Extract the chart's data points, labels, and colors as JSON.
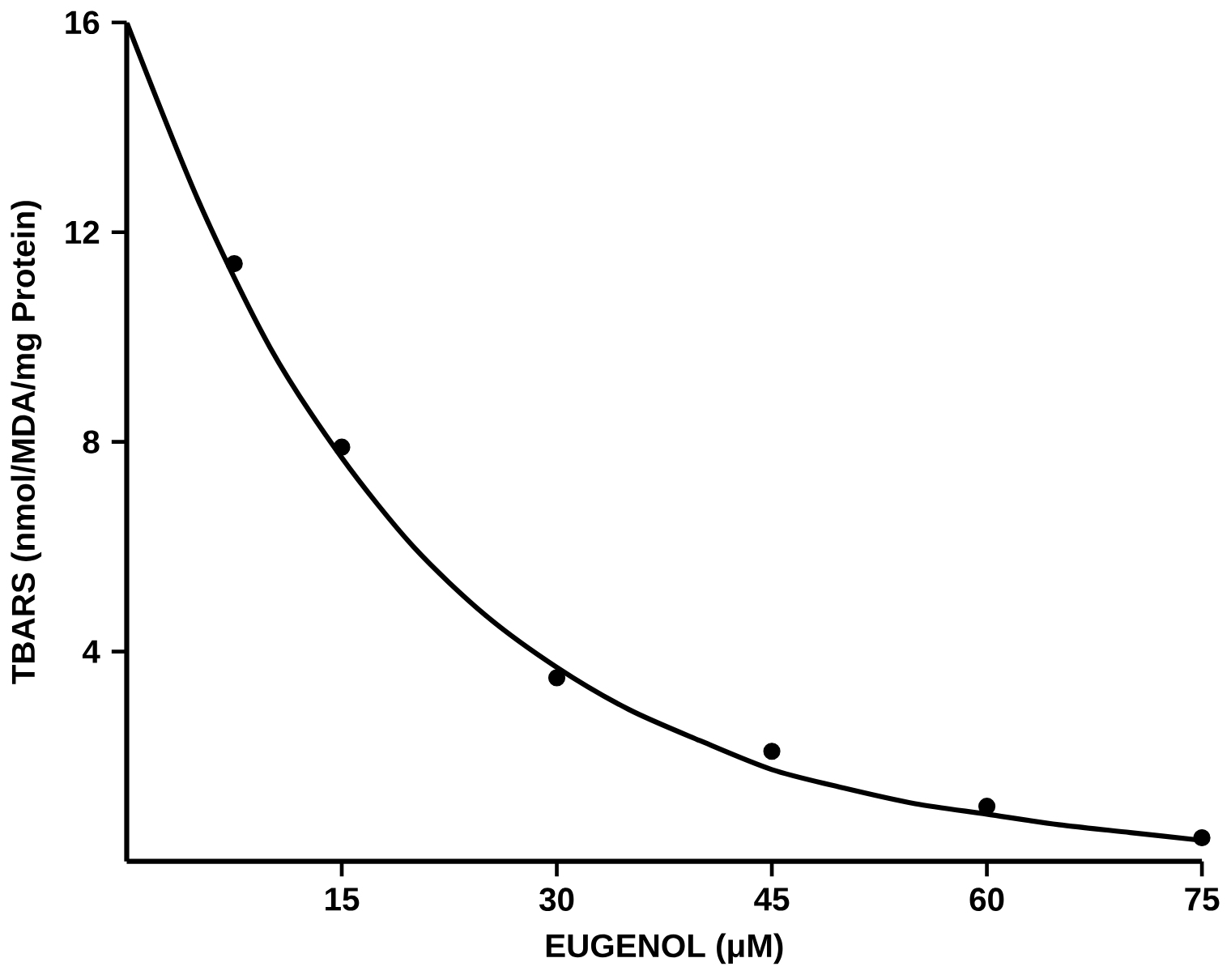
{
  "chart_data": {
    "type": "line",
    "xlabel": "EUGENOL (μM)",
    "ylabel": "TBARS (nmol/MDA/mg Protein)",
    "xlim": [
      0,
      75
    ],
    "ylim": [
      0,
      16
    ],
    "xticks": [
      15,
      30,
      45,
      60,
      75
    ],
    "yticks": [
      4,
      8,
      12,
      16
    ],
    "grid": false,
    "series": [
      {
        "type": "scatter",
        "color": "#000000",
        "marker": "circle",
        "x": [
          7.5,
          15,
          30,
          45,
          60,
          75
        ],
        "values": [
          11.4,
          7.9,
          3.5,
          2.1,
          1.05,
          0.45
        ]
      },
      {
        "color": "#000000",
        "marker": "none",
        "line_style": "solid",
        "x": [
          0,
          5,
          10,
          15,
          20,
          25,
          30,
          35,
          40,
          45,
          50,
          55,
          60,
          65,
          70,
          75
        ],
        "values": [
          16,
          12.6,
          9.8,
          7.7,
          6.0,
          4.7,
          3.7,
          2.9,
          2.3,
          1.75,
          1.4,
          1.1,
          0.9,
          0.7,
          0.55,
          0.4
        ]
      }
    ]
  }
}
